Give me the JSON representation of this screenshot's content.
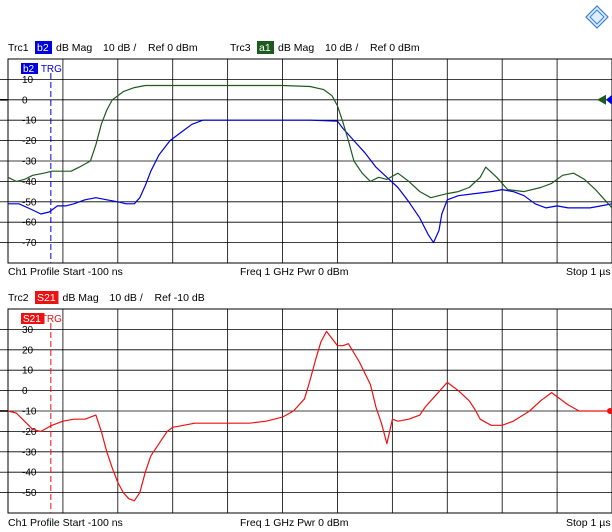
{
  "chart_data": [
    {
      "type": "line",
      "header": [
        {
          "trace": "Trc1",
          "badge": "b2",
          "badge_color": "#0000dd",
          "format": "dB Mag",
          "scale": "10 dB /",
          "ref": "Ref 0 dBm"
        },
        {
          "trace": "Trc3",
          "badge": "a1",
          "badge_color": "#1e5a1e",
          "format": "dB Mag",
          "scale": "10 dB /",
          "ref": "Ref 0 dBm"
        }
      ],
      "tag": {
        "text": "b2",
        "color": "#0000dd"
      },
      "trg_label": "TRG",
      "trg_color": "#0000dd",
      "trg_x": -22,
      "xlim": [
        -100,
        1000
      ],
      "ylim": [
        -80,
        20
      ],
      "yticks": [
        10,
        0,
        -10,
        -20,
        -30,
        -40,
        -50,
        -60,
        -70
      ],
      "ytick_labels": [
        "10",
        "0",
        "-10",
        "-20",
        "-30",
        "-40",
        "-50",
        "-60",
        "-70"
      ],
      "ref_level": 0,
      "grid": true,
      "footer": {
        "channel": "Ch1",
        "start": "Profile Start -100 ns",
        "center": "Freq 1 GHz Pwr 0 dBm",
        "stop": "Stop 1 µs"
      },
      "series": [
        {
          "color": "#0000dd",
          "x": [
            -100,
            -80,
            -55,
            -40,
            -25,
            -10,
            5,
            20,
            40,
            60,
            80,
            100,
            115,
            130,
            140,
            150,
            160,
            175,
            195,
            215,
            235,
            255,
            270,
            300,
            350,
            400,
            450,
            500,
            510,
            530,
            550,
            570,
            590,
            610,
            630,
            650,
            665,
            675,
            685,
            690,
            700,
            720,
            750,
            780,
            800,
            820,
            840,
            860,
            880,
            900,
            920,
            940,
            960,
            980,
            1000
          ],
          "y": [
            -51,
            -51,
            -54,
            -56,
            -55,
            -52,
            -52,
            -51,
            -49,
            -48,
            -49,
            -50,
            -51,
            -51,
            -48,
            -42,
            -35,
            -27,
            -20,
            -16,
            -12,
            -10,
            -10,
            -10,
            -10,
            -10,
            -10,
            -10.5,
            -14,
            -20,
            -26,
            -33,
            -38,
            -43,
            -50,
            -58,
            -66,
            -70,
            -64,
            -56,
            -49,
            -47,
            -46,
            -45,
            -44,
            -45,
            -47,
            -51,
            -53,
            -52,
            -53,
            -53,
            -53,
            -52,
            -51
          ]
        },
        {
          "color": "#1e5a1e",
          "x": [
            -100,
            -85,
            -70,
            -55,
            -35,
            -20,
            0,
            15,
            30,
            50,
            60,
            70,
            80,
            90,
            110,
            130,
            150,
            175,
            200,
            250,
            300,
            350,
            400,
            450,
            475,
            490,
            500,
            510,
            520,
            530,
            545,
            560,
            575,
            590,
            610,
            630,
            650,
            670,
            700,
            720,
            740,
            760,
            770,
            790,
            810,
            840,
            870,
            890,
            910,
            930,
            950,
            970,
            990,
            1000
          ],
          "y": [
            -38,
            -40,
            -39,
            -37,
            -36,
            -35,
            -35,
            -35,
            -33,
            -30,
            -22,
            -12,
            -5,
            0,
            4,
            6,
            7,
            7,
            7,
            7,
            7,
            7,
            7,
            6.5,
            5,
            2,
            -3,
            -11,
            -20,
            -30,
            -36,
            -40,
            -38,
            -39,
            -36,
            -40,
            -45,
            -48,
            -46,
            -45,
            -43,
            -38,
            -33,
            -38,
            -44,
            -45,
            -43,
            -41,
            -37,
            -36,
            -39,
            -44,
            -50,
            -53
          ]
        }
      ]
    },
    {
      "type": "line",
      "header": [
        {
          "trace": "Trc2",
          "badge": "S21",
          "badge_color": "#ee1111",
          "format": "dB Mag",
          "scale": "10 dB /",
          "ref": "Ref -10 dB"
        }
      ],
      "tag": {
        "text": "S21",
        "color": "#ee1111"
      },
      "trg_label": "TRG",
      "trg_color": "#ee1111",
      "trg_x": -22,
      "xlim": [
        -100,
        1000
      ],
      "ylim": [
        -60,
        40
      ],
      "yticks": [
        30,
        20,
        10,
        0,
        -10,
        -20,
        -30,
        -40,
        -50
      ],
      "ytick_labels": [
        "30",
        "20",
        "10",
        "0",
        "-10",
        "-20",
        "-30",
        "-40",
        "-50"
      ],
      "ref_level": -10,
      "grid": true,
      "footer": {
        "channel": "Ch1",
        "start": "Profile Start -100 ns",
        "center": "Freq 1 GHz Pwr 0 dBm",
        "stop": "Stop 1 µs"
      },
      "series": [
        {
          "color": "#ee1111",
          "x": [
            -100,
            -85,
            -70,
            -55,
            -40,
            -20,
            0,
            20,
            40,
            60,
            70,
            80,
            90,
            100,
            110,
            120,
            130,
            140,
            150,
            160,
            170,
            180,
            190,
            200,
            220,
            240,
            260,
            300,
            340,
            370,
            400,
            420,
            440,
            450,
            460,
            470,
            480,
            500,
            510,
            520,
            540,
            560,
            570,
            580,
            590,
            600,
            610,
            630,
            650,
            660,
            680,
            700,
            720,
            740,
            750,
            760,
            780,
            800,
            820,
            850,
            870,
            890,
            920,
            940,
            960,
            980,
            1000
          ],
          "y": [
            -10,
            -11,
            -15,
            -19,
            -20,
            -17,
            -15,
            -14,
            -14,
            -12,
            -20,
            -30,
            -38,
            -45,
            -50,
            -53,
            -54,
            -50,
            -40,
            -32,
            -28,
            -24,
            -20,
            -18,
            -17,
            -16,
            -16,
            -16,
            -16,
            -15,
            -13,
            -10,
            -4,
            5,
            15,
            24,
            29,
            22,
            22,
            23,
            14,
            3,
            -8,
            -16,
            -26,
            -14,
            -15,
            -14,
            -12,
            -8,
            -2,
            4,
            0,
            -5,
            -9,
            -14,
            -17,
            -17,
            -15,
            -10,
            -5,
            -1,
            -7,
            -10,
            -10,
            -10,
            -10
          ]
        }
      ]
    }
  ]
}
